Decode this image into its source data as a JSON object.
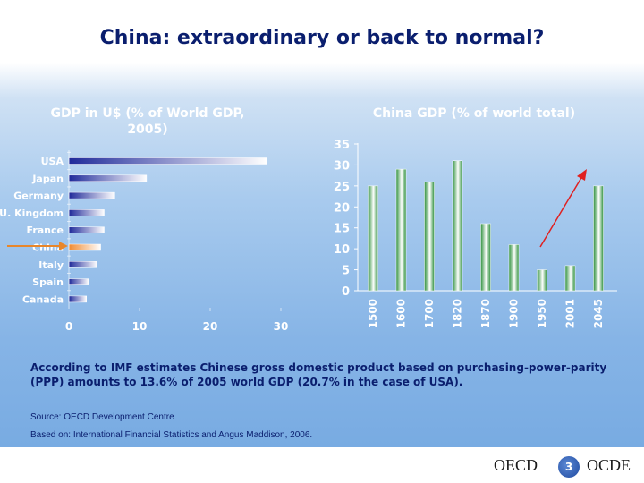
{
  "slide": {
    "title": "China: extraordinary or back to normal?",
    "page_number": "3",
    "logo_left": "OECD",
    "logo_right": "OCDE",
    "note": "According to IMF estimates Chinese gross domestic product based on purchasing-power-parity (PPP) amounts to 13.6% of 2005 world GDP (20.7% in the case of USA).",
    "source_1": "Source: OECD Development Centre",
    "source_2": "Based on: International Financial Statistics and Angus Maddison, 2006."
  },
  "colors": {
    "title": "#0a1e6e",
    "bar_blue_dark": "#1f2a9a",
    "bar_highlight": "#f0a050",
    "bar_green": "#3aa64a",
    "arrow_red": "#e02020",
    "arrow_orange": "#e8862a"
  },
  "chart_data": [
    {
      "type": "bar",
      "orientation": "horizontal",
      "title": "GDP in U$ (% of World GDP, 2005)",
      "categories": [
        "USA",
        "Japan",
        "Germany",
        "U. Kingdom",
        "France",
        "China",
        "Italy",
        "Spain",
        "Canada"
      ],
      "values": [
        28,
        11,
        6.5,
        5,
        5,
        4.5,
        4,
        2.8,
        2.5
      ],
      "highlight": "China",
      "xlim": [
        0,
        30
      ],
      "xticks": [
        "0",
        "10",
        "20",
        "30"
      ]
    },
    {
      "type": "bar",
      "title": "China GDP (% of world total)",
      "categories": [
        "1500",
        "1600",
        "1700",
        "1820",
        "1870",
        "1900",
        "1950",
        "2001",
        "2045"
      ],
      "values": [
        25,
        29,
        26,
        31,
        16,
        11,
        5,
        6,
        25
      ],
      "ylim": [
        0,
        35
      ],
      "yticks": [
        "0",
        "5",
        "10",
        "15",
        "20",
        "25",
        "30",
        "35"
      ],
      "annotation": "red arrow pointing upward from 1950 toward 2045"
    }
  ]
}
